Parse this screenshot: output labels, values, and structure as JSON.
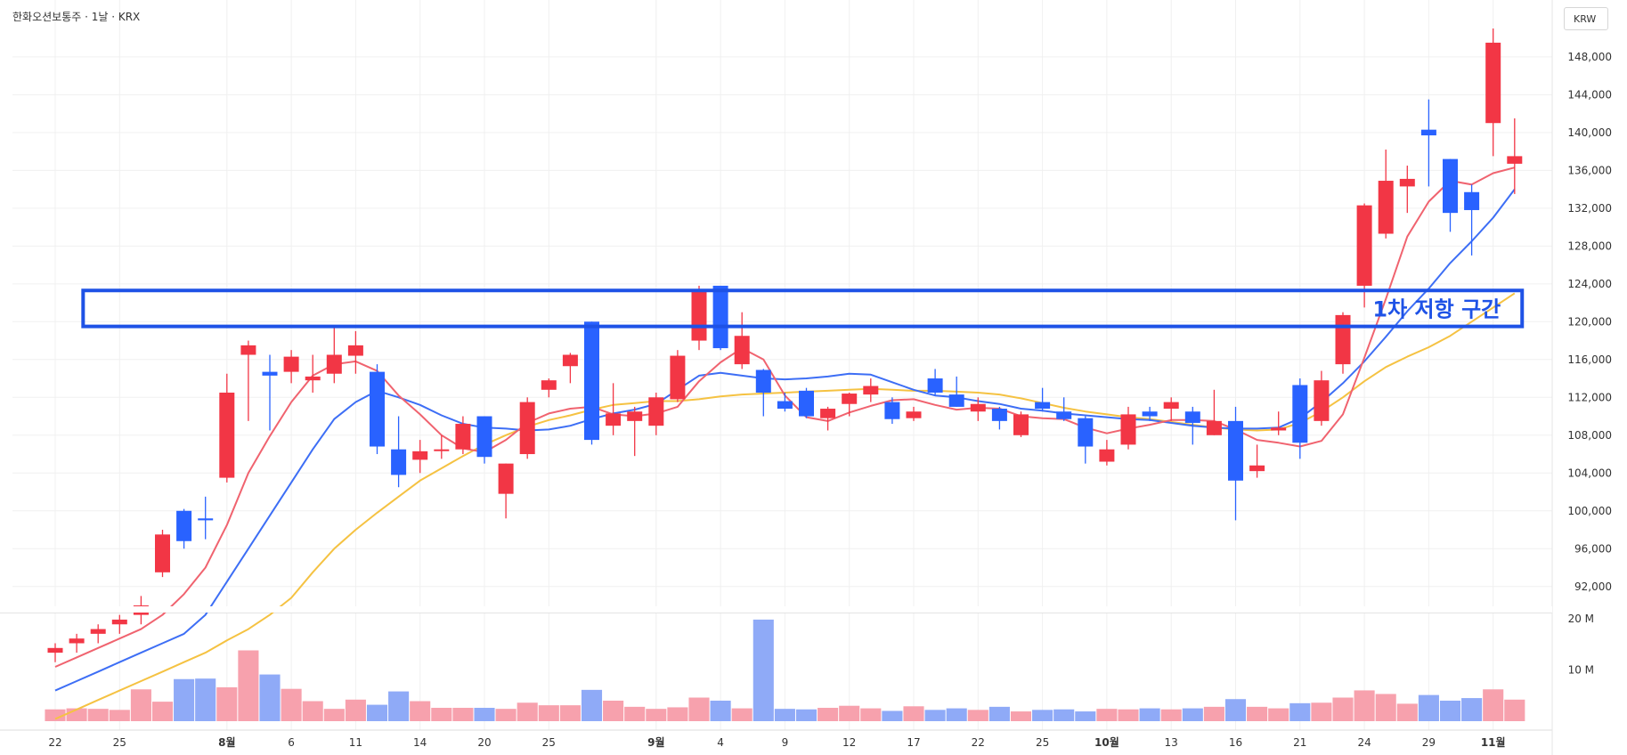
{
  "header": {
    "title": "한화오션보통주 · 1날 · KRX"
  },
  "currency_button": {
    "label": "KRW"
  },
  "colors": {
    "up": "#f23645",
    "down": "#2962ff",
    "up_vol": "#f7a1ad",
    "down_vol": "#8faaf7",
    "ma5": "#f0636f",
    "ma10": "#3d6ef5",
    "ma20": "#f5c242",
    "box": "#1e52e6",
    "grid": "#f0f0f0"
  },
  "chart_data": {
    "type": "candlestick",
    "price_axis": {
      "min": 90000,
      "max": 151000,
      "ticks": [
        92000,
        96000,
        100000,
        104000,
        108000,
        112000,
        116000,
        120000,
        124000,
        128000,
        132000,
        136000,
        140000,
        144000,
        148000
      ],
      "tick_labels": [
        "92,000",
        "96,000",
        "100,000",
        "104,000",
        "108,000",
        "112,000",
        "116,000",
        "120,000",
        "124,000",
        "128,000",
        "132,000",
        "136,000",
        "140,000",
        "144,000",
        "148,000"
      ]
    },
    "volume_axis": {
      "max": 21000000,
      "ticks": [
        10000000,
        20000000
      ],
      "tick_labels": [
        "10 M",
        "20 M"
      ]
    },
    "x_labels": [
      {
        "i": 0,
        "t": "22",
        "bold": false
      },
      {
        "i": 3,
        "t": "25",
        "bold": false
      },
      {
        "i": 8,
        "t": "8월",
        "bold": true
      },
      {
        "i": 11,
        "t": "6",
        "bold": false
      },
      {
        "i": 14,
        "t": "11",
        "bold": false
      },
      {
        "i": 17,
        "t": "14",
        "bold": false
      },
      {
        "i": 20,
        "t": "20",
        "bold": false
      },
      {
        "i": 23,
        "t": "25",
        "bold": false
      },
      {
        "i": 28,
        "t": "9월",
        "bold": true
      },
      {
        "i": 31,
        "t": "4",
        "bold": false
      },
      {
        "i": 34,
        "t": "9",
        "bold": false
      },
      {
        "i": 37,
        "t": "12",
        "bold": false
      },
      {
        "i": 40,
        "t": "17",
        "bold": false
      },
      {
        "i": 43,
        "t": "22",
        "bold": false
      },
      {
        "i": 46,
        "t": "25",
        "bold": false
      },
      {
        "i": 49,
        "t": "10월",
        "bold": true
      },
      {
        "i": 52,
        "t": "13",
        "bold": false
      },
      {
        "i": 55,
        "t": "16",
        "bold": false
      },
      {
        "i": 58,
        "t": "21",
        "bold": false
      },
      {
        "i": 61,
        "t": "24",
        "bold": false
      },
      {
        "i": 64,
        "t": "29",
        "bold": false
      },
      {
        "i": 67,
        "t": "11월",
        "bold": true
      }
    ],
    "candles": [
      [
        85000,
        86000,
        84000,
        85500
      ],
      [
        86000,
        87000,
        85000,
        86500
      ],
      [
        87000,
        88000,
        86000,
        87500
      ],
      [
        88000,
        89000,
        87000,
        88500
      ],
      [
        89000,
        91000,
        88000,
        90000
      ],
      [
        93500,
        98000,
        93000,
        97500
      ],
      [
        100000,
        100200,
        96000,
        96800
      ],
      [
        99200,
        101500,
        97000,
        99000
      ],
      [
        103500,
        114500,
        103000,
        112500
      ],
      [
        116500,
        118000,
        109500,
        117500
      ],
      [
        114700,
        116500,
        108500,
        114300
      ],
      [
        114700,
        117000,
        113500,
        116300
      ],
      [
        113800,
        116500,
        112500,
        114200
      ],
      [
        114500,
        119500,
        113500,
        116500
      ],
      [
        116400,
        119000,
        114500,
        117500
      ],
      [
        114700,
        115500,
        106000,
        106800
      ],
      [
        106500,
        110000,
        102500,
        103800
      ],
      [
        105400,
        107500,
        104000,
        106300
      ],
      [
        106400,
        108000,
        105500,
        106500
      ],
      [
        106500,
        110000,
        106000,
        109200
      ],
      [
        110000,
        110000,
        105000,
        105700
      ],
      [
        101800,
        105000,
        99200,
        105000
      ],
      [
        106000,
        112000,
        105500,
        111500
      ],
      [
        112800,
        114000,
        112000,
        113800
      ],
      [
        115300,
        116700,
        113500,
        116500
      ],
      [
        120000,
        120000,
        107000,
        107500
      ],
      [
        109000,
        113500,
        108000,
        110300
      ],
      [
        109500,
        111000,
        105800,
        110500
      ],
      [
        109000,
        112500,
        108000,
        112000
      ],
      [
        111800,
        117000,
        111500,
        116400
      ],
      [
        118000,
        123800,
        117000,
        123300
      ],
      [
        123800,
        123800,
        117000,
        117200
      ],
      [
        115500,
        121000,
        115000,
        118500
      ],
      [
        114900,
        115000,
        110000,
        112500
      ],
      [
        111600,
        112500,
        110500,
        110800
      ],
      [
        112700,
        113000,
        109800,
        110000
      ],
      [
        109800,
        111000,
        108500,
        110800
      ],
      [
        111300,
        112500,
        110000,
        112400
      ],
      [
        112300,
        114000,
        111500,
        113200
      ],
      [
        111500,
        112000,
        109200,
        109700
      ],
      [
        109800,
        111000,
        109500,
        110500
      ],
      [
        114000,
        115000,
        112200,
        112500
      ],
      [
        112300,
        114200,
        111000,
        111000
      ],
      [
        110500,
        112000,
        109500,
        111300
      ],
      [
        110800,
        111000,
        108600,
        109500
      ],
      [
        108000,
        110500,
        107800,
        110200
      ],
      [
        111500,
        113000,
        110500,
        110800
      ],
      [
        110500,
        112000,
        109500,
        109700
      ],
      [
        109800,
        110000,
        105000,
        106800
      ],
      [
        105200,
        107500,
        104800,
        106500
      ],
      [
        107000,
        111000,
        106500,
        110200
      ],
      [
        110500,
        111000,
        109500,
        110000
      ],
      [
        110800,
        112000,
        109500,
        111500
      ],
      [
        110500,
        111000,
        107000,
        109300
      ],
      [
        108000,
        112800,
        108000,
        109500
      ],
      [
        109500,
        111000,
        99000,
        103200
      ],
      [
        104200,
        107000,
        103500,
        104800
      ],
      [
        108500,
        110500,
        108000,
        108800
      ],
      [
        113300,
        114000,
        105500,
        107200
      ],
      [
        109500,
        114800,
        109000,
        113800
      ],
      [
        115500,
        121000,
        114500,
        120700
      ],
      [
        123800,
        132500,
        121500,
        132300
      ],
      [
        129300,
        138200,
        128800,
        134900
      ],
      [
        134300,
        136500,
        131500,
        135100
      ],
      [
        140300,
        143500,
        134300,
        139700
      ],
      [
        137200,
        137200,
        129500,
        131500
      ],
      [
        133700,
        134500,
        127000,
        131800
      ],
      [
        141000,
        151000,
        137500,
        149500
      ],
      [
        136700,
        141500,
        133500,
        137500
      ]
    ],
    "volumes": [
      2.3,
      2.5,
      2.4,
      2.2,
      6.2,
      3.8,
      8.2,
      8.3,
      6.6,
      13.8,
      9.1,
      6.3,
      3.9,
      2.4,
      4.2,
      3.2,
      5.8,
      3.9,
      2.6,
      2.6,
      2.6,
      2.4,
      3.6,
      3.1,
      3.1,
      6.1,
      4.0,
      2.8,
      2.4,
      2.7,
      4.6,
      4.0,
      2.5,
      19.8,
      2.4,
      2.3,
      2.6,
      3.0,
      2.5,
      2.0,
      2.9,
      2.2,
      2.5,
      2.2,
      2.8,
      1.9,
      2.2,
      2.3,
      1.9,
      2.4,
      2.3,
      2.5,
      2.3,
      2.5,
      2.8,
      4.3,
      2.8,
      2.5,
      3.5,
      3.6,
      4.6,
      6.0,
      5.3,
      3.4,
      5.1,
      4.0,
      4.5,
      6.2,
      4.2
    ],
    "ma5": [
      83500,
      84500,
      85500,
      86500,
      87500,
      89000,
      91200,
      94000,
      98500,
      104000,
      107900,
      111500,
      114300,
      115500,
      115800,
      114800,
      112200,
      110200,
      108000,
      106600,
      106200,
      107500,
      109300,
      110300,
      110800,
      111000,
      110200,
      110000,
      110300,
      111000,
      113700,
      115700,
      117200,
      116000,
      112200,
      109900,
      109500,
      110400,
      111100,
      111700,
      111800,
      111200,
      110700,
      110900,
      110800,
      110000,
      109800,
      109700,
      108800,
      108200,
      108700,
      109100,
      109600,
      109600,
      109500,
      108600,
      107500,
      107200,
      106800,
      107400,
      110200,
      116200,
      122400,
      129000,
      132700,
      134900,
      134500,
      135700,
      136300
    ],
    "ma10": [
      81000,
      82000,
      83000,
      84000,
      85000,
      86000,
      87000,
      89000,
      92500,
      96000,
      99500,
      103000,
      106500,
      109700,
      111500,
      112700,
      112000,
      111200,
      110100,
      109200,
      108800,
      108700,
      108500,
      108600,
      109000,
      109700,
      110300,
      110700,
      111300,
      112800,
      114300,
      114600,
      114300,
      114000,
      113900,
      114000,
      114200,
      114500,
      114400,
      113600,
      112800,
      112200,
      112000,
      111600,
      111300,
      110800,
      110600,
      110300,
      110100,
      109900,
      109700,
      109600,
      109300,
      109000,
      108800,
      108700,
      108700,
      108800,
      109800,
      111500,
      113500,
      115800,
      118400,
      121100,
      123500,
      126200,
      128500,
      131000,
      134000
    ],
    "ma20": [
      78000,
      79000,
      80000,
      81000,
      82000,
      83000,
      84000,
      85000,
      86300,
      87500,
      89000,
      90800,
      93500,
      96000,
      98000,
      99800,
      101500,
      103200,
      104500,
      105800,
      107000,
      108000,
      108900,
      109600,
      110100,
      110700,
      111200,
      111400,
      111600,
      111600,
      111800,
      112100,
      112300,
      112400,
      112500,
      112600,
      112700,
      112800,
      112900,
      112800,
      112700,
      112700,
      112600,
      112500,
      112300,
      111900,
      111400,
      110900,
      110500,
      110200,
      109900,
      109700,
      109400,
      109100,
      108800,
      108600,
      108500,
      108600,
      109300,
      110500,
      112000,
      113700,
      115200,
      116300,
      117300,
      118500,
      120000,
      121500,
      123000
    ]
  },
  "annotation": {
    "label": "1차 저항 구간",
    "price_low": 119500,
    "price_high": 123300,
    "start_index": 1.3,
    "end_index": 68.35
  }
}
